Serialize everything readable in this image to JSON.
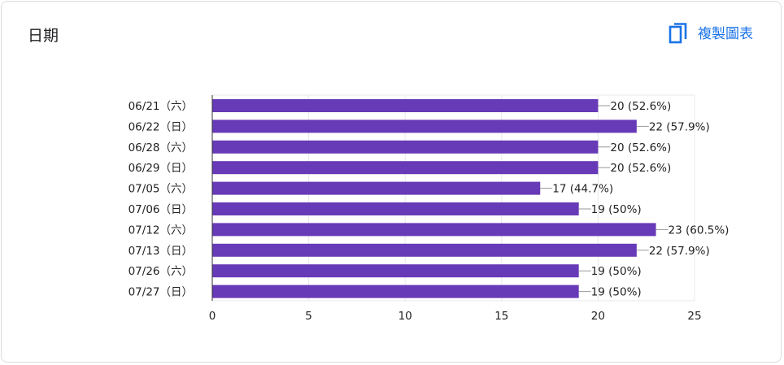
{
  "header": {
    "title": "日期",
    "copy_label": "複製圖表"
  },
  "colors": {
    "bar": "#673ab7",
    "accent": "#1a73e8",
    "grid": "#e8e8e8"
  },
  "chart_data": {
    "type": "bar",
    "orientation": "horizontal",
    "title": "",
    "xlabel": "",
    "ylabel": "",
    "categories": [
      "06/21（六）",
      "06/22（日）",
      "06/28（六）",
      "06/29（日）",
      "07/05（六）",
      "07/06（日）",
      "07/12（六）",
      "07/13（日）",
      "07/26（六）",
      "07/27（日）"
    ],
    "values": [
      20,
      22,
      20,
      20,
      17,
      19,
      23,
      22,
      19,
      19
    ],
    "value_labels": [
      "20 (52.6%)",
      "22 (57.9%)",
      "20 (52.6%)",
      "20 (52.6%)",
      "17 (44.7%)",
      "19 (50%)",
      "23 (60.5%)",
      "22 (57.9%)",
      "19 (50%)",
      "19 (50%)"
    ],
    "xlim": [
      0,
      25
    ],
    "xticks": [
      0,
      5,
      10,
      15,
      20,
      25
    ],
    "grid": true,
    "legend": "none"
  }
}
